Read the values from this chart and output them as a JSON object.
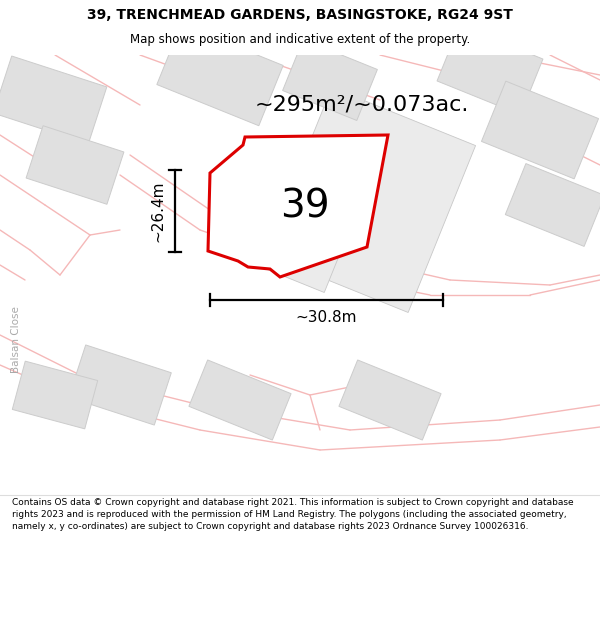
{
  "title_line1": "39, TRENCHMEAD GARDENS, BASINGSTOKE, RG24 9ST",
  "title_line2": "Map shows position and indicative extent of the property.",
  "area_text": "~295m²/~0.073ac.",
  "label_39": "39",
  "dim_height": "~26.4m",
  "dim_width": "~30.8m",
  "footer_text": "Contains OS data © Crown copyright and database right 2021. This information is subject to Crown copyright and database rights 2023 and is reproduced with the permission of HM Land Registry. The polygons (including the associated geometry, namely x, y co-ordinates) are subject to Crown copyright and database rights 2023 Ordnance Survey 100026316.",
  "bg_color": "#ffffff",
  "map_bg": "#ffffff",
  "plot_color": "#dd0000",
  "building_fill": "#e0e0e0",
  "building_edge": "#cccccc",
  "road_color": "#f5b8b8",
  "side_text": "Balsan Close"
}
